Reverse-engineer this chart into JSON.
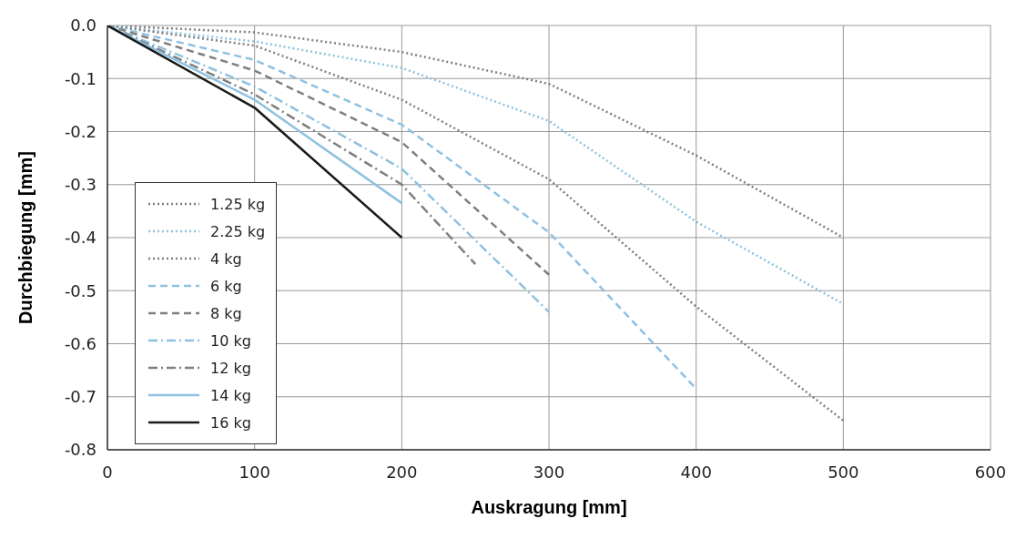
{
  "chart_data": {
    "type": "line",
    "xlabel": "Auskragung [mm]",
    "ylabel": "Durchbiegung [mm]",
    "xlim": [
      0,
      600
    ],
    "xticks": [
      0,
      100,
      200,
      300,
      400,
      500,
      600
    ],
    "ylim": [
      -0.8,
      0
    ],
    "yticks": [
      {
        "value": 0,
        "label": "0.0"
      },
      {
        "value": -0.1,
        "label": "-0.1"
      },
      {
        "value": -0.2,
        "label": "-0.2"
      },
      {
        "value": -0.3,
        "label": "-0.3"
      },
      {
        "value": -0.4,
        "label": "-0.4"
      },
      {
        "value": -0.5,
        "label": "-0.5"
      },
      {
        "value": -0.6,
        "label": "-0.6"
      },
      {
        "value": -0.7,
        "label": "-0.7"
      },
      {
        "value": -0.8,
        "label": "-0.8"
      }
    ],
    "grid": true,
    "legend": "bottom left",
    "marker": "none",
    "series": [
      {
        "name": "1.25 kg",
        "color": "#7f7f7f",
        "line_style": "dotted",
        "x": [
          0,
          100,
          200,
          300,
          400,
          500
        ],
        "values": [
          0,
          -0.013,
          -0.05,
          -0.11,
          -0.245,
          -0.4
        ]
      },
      {
        "name": "2.25 kg",
        "color": "#8fc1e0",
        "line_style": "dotted",
        "x": [
          0,
          100,
          200,
          300,
          400,
          500
        ],
        "values": [
          0,
          -0.03,
          -0.08,
          -0.18,
          -0.37,
          -0.525
        ]
      },
      {
        "name": "4 kg",
        "color": "#7f7f7f",
        "line_style": "dotted",
        "x": [
          0,
          100,
          200,
          300,
          400,
          500
        ],
        "values": [
          0,
          -0.038,
          -0.14,
          -0.29,
          -0.53,
          -0.745
        ]
      },
      {
        "name": "6 kg",
        "color": "#8fc1e0",
        "line_style": "dashed",
        "x": [
          0,
          100,
          200,
          300,
          400
        ],
        "values": [
          0,
          -0.065,
          -0.187,
          -0.39,
          -0.685
        ]
      },
      {
        "name": "8 kg",
        "color": "#7f7f7f",
        "line_style": "dashed",
        "x": [
          0,
          100,
          200,
          300
        ],
        "values": [
          0,
          -0.085,
          -0.22,
          -0.47
        ]
      },
      {
        "name": "10 kg",
        "color": "#8fc1e0",
        "line_style": "dashdot",
        "x": [
          0,
          100,
          200,
          300
        ],
        "values": [
          0,
          -0.115,
          -0.27,
          -0.54
        ]
      },
      {
        "name": "12 kg",
        "color": "#7f7f7f",
        "line_style": "dashdot",
        "x": [
          0,
          100,
          200,
          250
        ],
        "values": [
          0,
          -0.13,
          -0.3,
          -0.45
        ]
      },
      {
        "name": "14 kg",
        "color": "#8fc1e0",
        "line_style": "solid",
        "x": [
          0,
          100,
          200
        ],
        "values": [
          0,
          -0.14,
          -0.335
        ]
      },
      {
        "name": "16 kg",
        "color": "#1a1a1a",
        "line_style": "solid",
        "x": [
          0,
          100,
          200
        ],
        "values": [
          0,
          -0.155,
          -0.4
        ]
      }
    ]
  }
}
